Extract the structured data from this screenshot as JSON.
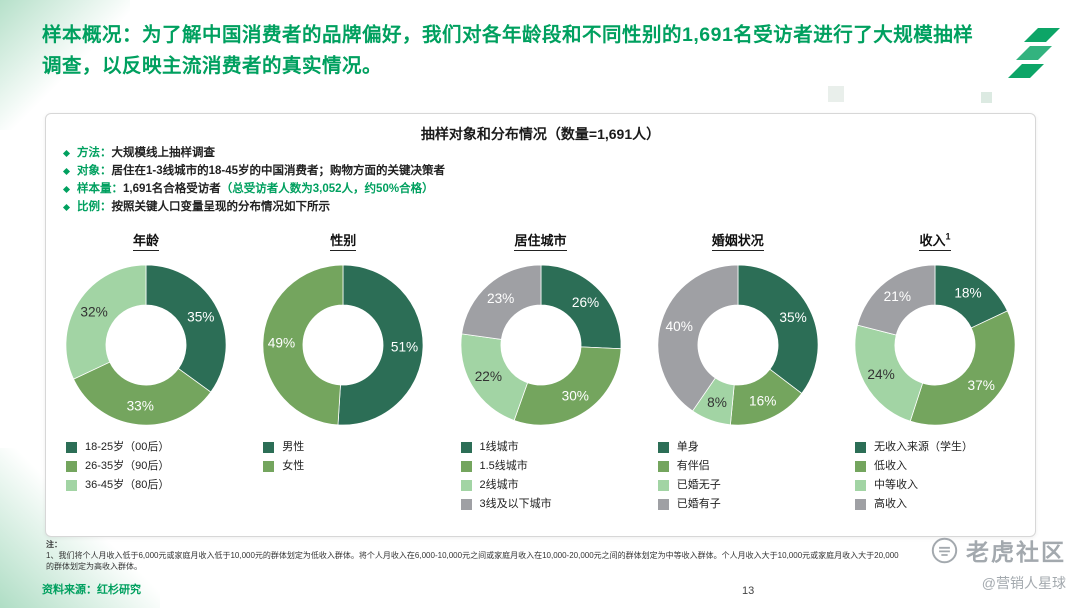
{
  "page": {
    "title": "样本概况：为了解中国消费者的品牌偏好，我们对各年龄段和不同性别的1,691名受访者进行了大规模抽样调查，以反映主流消费者的真实情况。",
    "page_number": "13",
    "source": "资料来源：红杉研究",
    "note_label": "注：",
    "note": "1、我们将个人月收入低于6,000元或家庭月收入低于10,000元的群体划定为低收入群体。将个人月收入在6,000-10,000元之间或家庭月收入在10,000-20,000元之间的群体划定为中等收入群体。个人月收入大于10,000元或家庭月收入大于20,000的群体划定为高收入群体。",
    "watermark": {
      "brand": "老虎社区",
      "handle": "@营销人星球"
    }
  },
  "panel": {
    "title": "抽样对象和分布情况（数量=1,691人）",
    "bullets": [
      {
        "label": "方法：",
        "text": "大规模线上抽样调查",
        "highlight": ""
      },
      {
        "label": "对象：",
        "text": "居住在1-3线城市的18-45岁的中国消费者；购物方面的关键决策者",
        "highlight": ""
      },
      {
        "label": "样本量：",
        "text": "1,691名合格受访者",
        "highlight": "（总受访者人数为3,052人，约50%合格）"
      },
      {
        "label": "比例：",
        "text": "按照关键人口变量呈现的分布情况如下所示",
        "highlight": ""
      }
    ]
  },
  "colors": {
    "accent": "#00A05F",
    "dark": "#2C6E56",
    "mid": "#74A55E",
    "light": "#A2D4A4",
    "gray": "#9FA0A4"
  },
  "chart_data": [
    {
      "type": "pie",
      "style": "donut",
      "title": "年龄",
      "sup": "",
      "slices": [
        {
          "label": "18-25岁（00后）",
          "value": 35,
          "color": "dark"
        },
        {
          "label": "26-35岁（90后）",
          "value": 33,
          "color": "mid"
        },
        {
          "label": "36-45岁（80后）",
          "value": 32,
          "color": "light"
        }
      ]
    },
    {
      "type": "pie",
      "style": "donut",
      "title": "性别",
      "sup": "",
      "slices": [
        {
          "label": "男性",
          "value": 51,
          "color": "dark"
        },
        {
          "label": "女性",
          "value": 49,
          "color": "mid"
        }
      ]
    },
    {
      "type": "pie",
      "style": "donut",
      "title": "居住城市",
      "sup": "",
      "slices": [
        {
          "label": "1线城市",
          "value": 26,
          "color": "dark"
        },
        {
          "label": "1.5线城市",
          "value": 30,
          "color": "mid"
        },
        {
          "label": "2线城市",
          "value": 22,
          "color": "light"
        },
        {
          "label": "3线及以下城市",
          "value": 23,
          "color": "gray"
        }
      ]
    },
    {
      "type": "pie",
      "style": "donut",
      "title": "婚姻状况",
      "sup": "",
      "slices": [
        {
          "label": "单身",
          "value": 35,
          "color": "dark"
        },
        {
          "label": "有伴侣",
          "value": 16,
          "color": "mid"
        },
        {
          "label": "已婚无子",
          "value": 8,
          "color": "light"
        },
        {
          "label": "已婚有子",
          "value": 40,
          "color": "gray"
        }
      ]
    },
    {
      "type": "pie",
      "style": "donut",
      "title": "收入",
      "sup": "1",
      "slices": [
        {
          "label": "无收入来源（学生）",
          "value": 18,
          "color": "dark"
        },
        {
          "label": "低收入",
          "value": 37,
          "color": "mid"
        },
        {
          "label": "中等收入",
          "value": 24,
          "color": "light"
        },
        {
          "label": "高收入",
          "value": 21,
          "color": "gray"
        }
      ]
    }
  ]
}
